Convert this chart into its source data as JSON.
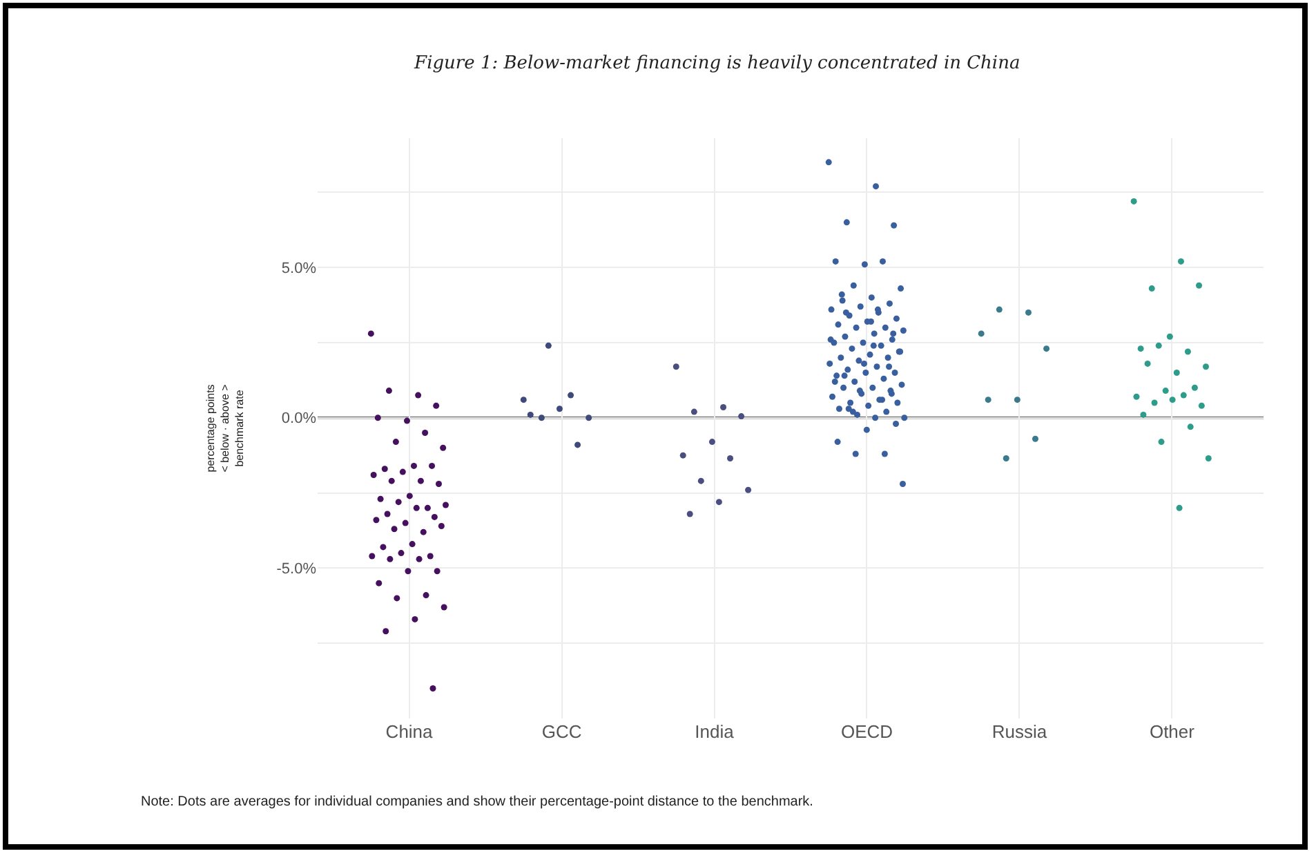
{
  "chart_data": {
    "type": "scatter",
    "title": "Figure 1: Below-market financing is heavily concentrated in China",
    "ylabel": "percentage points\n< below · above >\nbenchmark rate",
    "categories": [
      "China",
      "GCC",
      "India",
      "OECD",
      "Russia",
      "Other"
    ],
    "series": [
      {
        "color": "#45105e",
        "x": [
          "China",
          "China",
          "China",
          "China",
          "China",
          "China",
          "China",
          "China",
          "China",
          "China",
          "China",
          "China",
          "China",
          "China",
          "China",
          "China",
          "China",
          "China",
          "China",
          "China",
          "China",
          "China",
          "China",
          "China",
          "China",
          "China",
          "China",
          "China",
          "China",
          "China",
          "China",
          "China",
          "China",
          "China",
          "China",
          "China",
          "China",
          "China",
          "China",
          "China",
          "China",
          "China",
          "China",
          "China",
          "China",
          "China"
        ],
        "values": [
          2.8,
          0.75,
          0.9,
          0.4,
          -0.1,
          0.0,
          -0.5,
          -0.8,
          -1.0,
          -1.6,
          -1.7,
          -1.6,
          -1.8,
          -1.9,
          -2.1,
          -2.1,
          -2.2,
          -2.6,
          -2.7,
          -3.0,
          -2.8,
          -2.9,
          -3.0,
          -3.2,
          -3.3,
          -3.5,
          -3.4,
          -3.8,
          -3.7,
          -3.6,
          -4.2,
          -4.3,
          -4.6,
          -4.5,
          -4.6,
          -4.7,
          -4.7,
          -5.1,
          -5.1,
          -5.5,
          -5.9,
          -6.0,
          -6.3,
          -6.7,
          -7.1,
          -9.0
        ]
      },
      {
        "color": "#3e4a7a",
        "x": [
          "GCC",
          "GCC",
          "GCC",
          "GCC",
          "GCC",
          "GCC",
          "GCC",
          "GCC"
        ],
        "values": [
          0.6,
          0.75,
          0.0,
          0.0,
          0.3,
          0.1,
          -0.9,
          2.4
        ]
      },
      {
        "color": "#4a4f80",
        "x": [
          "India",
          "India",
          "India",
          "India",
          "India",
          "India",
          "India",
          "India",
          "India",
          "India",
          "India"
        ],
        "values": [
          1.7,
          0.35,
          0.2,
          0.05,
          -0.8,
          -1.25,
          -1.35,
          -2.1,
          -2.4,
          -2.8,
          -3.2
        ]
      },
      {
        "color": "#3a5f9e",
        "x": [
          "OECD",
          "OECD",
          "OECD",
          "OECD",
          "OECD",
          "OECD",
          "OECD",
          "OECD",
          "OECD",
          "OECD",
          "OECD",
          "OECD",
          "OECD",
          "OECD",
          "OECD",
          "OECD",
          "OECD",
          "OECD",
          "OECD",
          "OECD",
          "OECD",
          "OECD",
          "OECD",
          "OECD",
          "OECD",
          "OECD",
          "OECD",
          "OECD",
          "OECD",
          "OECD",
          "OECD",
          "OECD",
          "OECD",
          "OECD",
          "OECD",
          "OECD",
          "OECD",
          "OECD",
          "OECD",
          "OECD",
          "OECD",
          "OECD",
          "OECD",
          "OECD",
          "OECD",
          "OECD",
          "OECD",
          "OECD",
          "OECD",
          "OECD",
          "OECD",
          "OECD",
          "OECD",
          "OECD",
          "OECD",
          "OECD",
          "OECD",
          "OECD",
          "OECD",
          "OECD",
          "OECD",
          "OECD",
          "OECD",
          "OECD",
          "OECD",
          "OECD",
          "OECD",
          "OECD",
          "OECD",
          "OECD",
          "OECD",
          "OECD",
          "OECD",
          "OECD",
          "OECD",
          "OECD",
          "OECD",
          "OECD",
          "OECD",
          "OECD"
        ],
        "values": [
          8.5,
          7.7,
          6.5,
          6.4,
          5.1,
          5.2,
          5.2,
          4.4,
          4.3,
          4.0,
          3.9,
          3.8,
          3.7,
          3.6,
          3.5,
          3.4,
          3.3,
          3.2,
          3.1,
          3.0,
          3.0,
          2.9,
          2.8,
          2.7,
          2.6,
          2.5,
          2.5,
          2.4,
          2.3,
          2.2,
          2.1,
          2.0,
          2.0,
          1.9,
          1.8,
          1.7,
          1.6,
          1.5,
          1.5,
          1.4,
          1.3,
          1.2,
          1.1,
          1.0,
          1.0,
          0.9,
          0.8,
          0.7,
          0.6,
          0.5,
          0.5,
          0.4,
          0.3,
          0.2,
          0.1,
          0.0,
          0.0,
          3.5,
          2.8,
          1.8,
          1.2,
          0.6,
          0.2,
          2.2,
          3.2,
          4.1,
          1.7,
          0.9,
          2.6,
          3.6,
          0.3,
          -0.2,
          -0.4,
          -0.8,
          -1.2,
          -1.2,
          -2.2,
          2.4,
          1.4,
          0.8
        ]
      },
      {
        "color": "#3a7a8c",
        "x": [
          "Russia",
          "Russia",
          "Russia",
          "Russia",
          "Russia",
          "Russia",
          "Russia",
          "Russia"
        ],
        "values": [
          2.8,
          3.5,
          3.6,
          2.3,
          0.6,
          0.6,
          -0.7,
          -1.35
        ]
      },
      {
        "color": "#2e9c8a",
        "x": [
          "Other",
          "Other",
          "Other",
          "Other",
          "Other",
          "Other",
          "Other",
          "Other",
          "Other",
          "Other",
          "Other",
          "Other",
          "Other",
          "Other",
          "Other",
          "Other",
          "Other",
          "Other",
          "Other",
          "Other",
          "Other",
          "Other",
          "Other"
        ],
        "values": [
          7.2,
          5.2,
          4.3,
          4.4,
          2.7,
          2.3,
          2.2,
          2.4,
          1.7,
          1.5,
          1.8,
          1.0,
          0.9,
          0.7,
          0.75,
          0.5,
          0.4,
          0.6,
          0.1,
          -0.3,
          -0.8,
          -1.35,
          -3.0
        ]
      }
    ],
    "ylim": [
      -10,
      9.3
    ],
    "yticks": [
      {
        "value": -7.5,
        "label": null
      },
      {
        "value": -5,
        "label": "-5.0%"
      },
      {
        "value": -2.5,
        "label": null
      },
      {
        "value": 0,
        "label": "0.0%"
      },
      {
        "value": 2.5,
        "label": null
      },
      {
        "value": 5,
        "label": "5.0%"
      },
      {
        "value": 7.5,
        "label": null
      }
    ],
    "ref_lines": [
      {
        "axis": "y",
        "value": 0,
        "color": "#222222"
      }
    ],
    "grid": true,
    "marker": "circle",
    "annotations": [
      "Note: Dots are averages for individual companies and show their percentage-point distance to the benchmark."
    ]
  }
}
